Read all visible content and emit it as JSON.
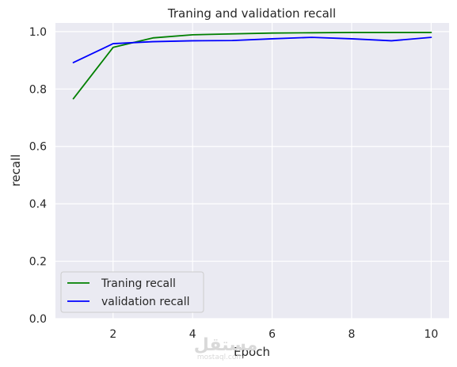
{
  "chart_data": {
    "type": "line",
    "title": "Traning and validation recall",
    "xlabel": "Epoch",
    "ylabel": "recall",
    "x": [
      1,
      2,
      3,
      4,
      5,
      6,
      7,
      8,
      9,
      10
    ],
    "xlim": [
      0.55,
      10.45
    ],
    "ylim": [
      0.0,
      1.03
    ],
    "xticks": [
      2,
      4,
      6,
      8,
      10
    ],
    "xtick_labels": [
      "2",
      "4",
      "6",
      "8",
      "10"
    ],
    "yticks": [
      0.0,
      0.2,
      0.4,
      0.6,
      0.8,
      1.0
    ],
    "ytick_labels": [
      "0.0",
      "0.2",
      "0.4",
      "0.6",
      "0.8",
      "1.0"
    ],
    "grid": true,
    "legend_position": "lower-left",
    "series": [
      {
        "name": "Traning recall",
        "color": "#008000",
        "values": [
          0.766,
          0.945,
          0.978,
          0.989,
          0.992,
          0.995,
          0.996,
          0.997,
          0.997,
          0.997
        ]
      },
      {
        "name": "validation recall",
        "color": "#0000ff",
        "values": [
          0.892,
          0.958,
          0.965,
          0.968,
          0.969,
          0.975,
          0.98,
          0.975,
          0.968,
          0.98
        ]
      }
    ]
  },
  "watermark": {
    "arabic": "مستقل",
    "latin": "mostaql.com"
  },
  "colors": {
    "plot_background": "#eaeaf2",
    "grid": "#ffffff",
    "text": "#262626"
  }
}
